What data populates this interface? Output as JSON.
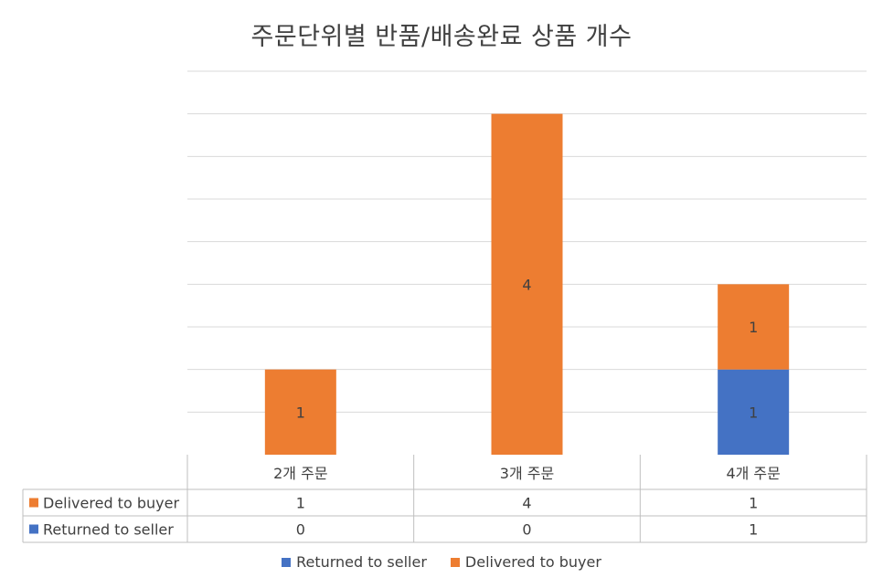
{
  "chart_data": {
    "type": "bar",
    "stacked": true,
    "title": "주문단위별 반품/배송완료 상품 개수",
    "categories": [
      "2개 주문",
      "3개 주문",
      "4개 주문"
    ],
    "series": [
      {
        "name": "Returned to seller",
        "values": [
          0,
          0,
          1
        ],
        "color": "#4472C4"
      },
      {
        "name": "Delivered to buyer",
        "values": [
          1,
          4,
          1
        ],
        "color": "#ED7D31"
      }
    ],
    "ylim": [
      0,
      4.5
    ],
    "grid_step": 0.5,
    "grid": true,
    "data_table": true,
    "data_table_row_order": [
      "Delivered to buyer",
      "Returned to seller"
    ],
    "legend_position": "bottom"
  }
}
